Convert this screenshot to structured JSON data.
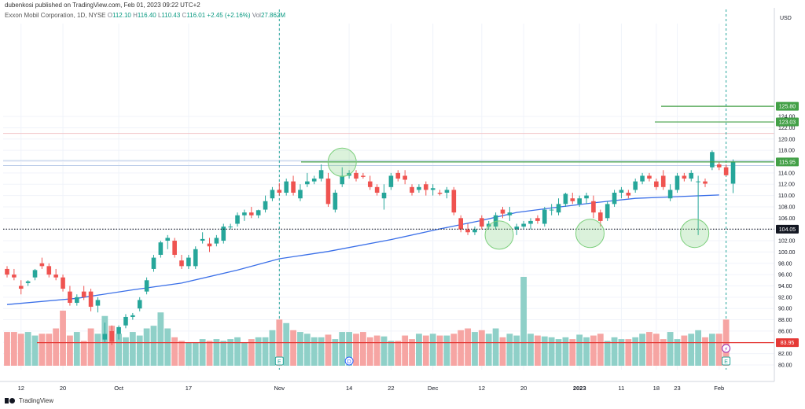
{
  "header": {
    "publisher": "dubenkosi published on TradingView.com, Feb 01, 2023 09:22 UTC+2",
    "symbol": "Exxon Mobil Corporation, 1D, NYSE",
    "o_label": "O",
    "o": "112.10",
    "h_label": "H",
    "h": "116.40",
    "l_label": "L",
    "l": "110.43",
    "c_label": "C",
    "c": "116.01",
    "change": "+2.45 (+2.16%)",
    "vol_label": "Vol",
    "vol": "27.862M"
  },
  "footer": {
    "brand": "TradingView"
  },
  "colors": {
    "up": "#26a69a",
    "down": "#ef5350",
    "ma": "#3a6fe8",
    "level": "#43a047",
    "volume_line": "#e53935",
    "circle": "#7ccf7c"
  },
  "chart_data": {
    "type": "candlestick",
    "currency_label": "USD",
    "ylim": [
      79.5,
      127
    ],
    "y_ticks": [
      "80.00",
      "82.00",
      "84.00",
      "86.00",
      "88.00",
      "90.00",
      "92.00",
      "94.00",
      "96.00",
      "98.00",
      "100.00",
      "102.00",
      "104.00",
      "106.00",
      "108.00",
      "110.00",
      "112.00",
      "114.00",
      "116.00",
      "118.00",
      "120.00",
      "122.00",
      "124.00"
    ],
    "x_ticks": [
      {
        "label": "12",
        "index": 2
      },
      {
        "label": "20",
        "index": 8
      },
      {
        "label": "Oct",
        "index": 16
      },
      {
        "label": "17",
        "index": 26
      },
      {
        "label": "Nov",
        "index": 39
      },
      {
        "label": "14",
        "index": 49
      },
      {
        "label": "22",
        "index": 55
      },
      {
        "label": "Dec",
        "index": 61
      },
      {
        "label": "12",
        "index": 68
      },
      {
        "label": "20",
        "index": 74
      },
      {
        "label": "2023",
        "index": 82
      },
      {
        "label": "11",
        "index": 88
      },
      {
        "label": "18",
        "index": 93
      },
      {
        "label": "23",
        "index": 96
      },
      {
        "label": "Feb",
        "index": 102
      }
    ],
    "candles": [
      [
        97,
        97.5,
        95.5,
        96
      ],
      [
        96,
        97,
        95,
        95.5
      ],
      [
        94,
        95,
        92.5,
        93.5
      ],
      [
        94.5,
        95,
        94,
        94.8
      ],
      [
        95.5,
        97,
        95,
        96.8
      ],
      [
        98,
        99,
        97,
        97.5
      ],
      [
        97.5,
        98,
        95.5,
        96
      ],
      [
        96,
        97,
        95,
        95.5
      ],
      [
        95.5,
        96,
        93,
        93.5
      ],
      [
        93,
        94,
        90.5,
        91
      ],
      [
        91,
        92.5,
        90.5,
        92
      ],
      [
        93,
        94,
        91.5,
        92
      ],
      [
        93,
        93.5,
        89.5,
        90.3
      ],
      [
        90.5,
        92,
        89.3,
        91.5
      ],
      [
        84.5,
        87.5,
        84,
        85.5
      ],
      [
        86,
        87,
        83.5,
        84.1
      ],
      [
        85.5,
        87,
        84.5,
        86.7
      ],
      [
        87,
        89,
        86.5,
        88.5
      ],
      [
        88.5,
        89.2,
        88,
        88.8
      ],
      [
        90,
        92,
        89.5,
        91.5
      ],
      [
        93,
        95.5,
        92.5,
        95
      ],
      [
        97,
        99.5,
        96.5,
        99
      ],
      [
        99.5,
        102,
        99,
        101.7
      ],
      [
        102,
        103,
        100.5,
        102.5
      ],
      [
        102,
        102.5,
        99,
        99.5
      ],
      [
        98.5,
        99.5,
        97,
        97.5
      ],
      [
        97.5,
        99.5,
        97,
        99
      ],
      [
        97.5,
        101,
        97,
        100.5
      ],
      [
        102,
        103.5,
        101.5,
        102.3
      ],
      [
        101.5,
        102.5,
        100,
        101
      ],
      [
        101.5,
        103,
        101,
        102.5
      ],
      [
        102,
        105,
        101.5,
        104.5
      ],
      [
        104.5,
        105,
        104,
        104.5
      ],
      [
        105,
        107,
        104.5,
        106.5
      ],
      [
        106.5,
        107.5,
        105.5,
        107
      ],
      [
        107,
        108,
        106,
        106.5
      ],
      [
        106.5,
        107.5,
        106,
        107.4
      ],
      [
        107.5,
        110,
        107,
        109
      ],
      [
        109.5,
        111.5,
        109,
        111
      ],
      [
        111,
        112.2,
        110,
        110.5
      ],
      [
        110.5,
        113,
        110,
        112.5
      ],
      [
        112.5,
        113.5,
        110,
        110.5
      ],
      [
        109.5,
        112,
        109,
        111
      ],
      [
        112,
        114,
        111.5,
        112.5
      ],
      [
        112.5,
        113.5,
        112,
        113
      ],
      [
        113,
        115.5,
        112.5,
        114.5
      ],
      [
        113,
        114,
        108,
        108.5
      ],
      [
        107.5,
        111,
        107,
        110.5
      ],
      [
        112,
        115,
        111.5,
        113.5
      ],
      [
        113.5,
        114.5,
        113,
        114
      ],
      [
        114,
        114.5,
        112.5,
        113
      ],
      [
        113.5,
        114,
        113,
        113.3
      ],
      [
        112.5,
        113.5,
        111,
        111.5
      ],
      [
        111.5,
        112,
        110,
        110.5
      ],
      [
        109.5,
        112,
        107.5,
        110.5
      ],
      [
        111.5,
        114,
        111,
        113.5
      ],
      [
        114,
        114.5,
        112.5,
        113
      ],
      [
        113.5,
        114.5,
        112,
        112.8
      ],
      [
        111.5,
        112,
        110,
        110.5
      ],
      [
        111,
        112,
        110.5,
        111.5
      ],
      [
        112,
        112.5,
        110,
        111
      ],
      [
        111,
        112,
        110,
        111.3
      ],
      [
        110.5,
        111,
        110,
        110.3
      ],
      [
        110.5,
        111.5,
        109.5,
        111
      ],
      [
        111,
        111.5,
        106.5,
        107
      ],
      [
        106,
        106.5,
        103.5,
        104
      ],
      [
        104,
        105,
        103,
        103.5
      ],
      [
        103.5,
        104.5,
        103,
        104
      ],
      [
        106,
        106.5,
        104,
        104.5
      ],
      [
        104.5,
        105.5,
        104,
        105
      ],
      [
        104.5,
        107,
        104,
        106.5
      ],
      [
        107.5,
        108,
        106,
        106.8
      ],
      [
        106.5,
        108,
        105.5,
        107
      ],
      [
        104,
        105,
        103,
        104.5
      ],
      [
        104.5,
        105.5,
        104,
        105
      ],
      [
        105,
        106,
        104,
        105.5
      ],
      [
        106,
        106.5,
        105,
        105.5
      ],
      [
        105,
        108,
        104.5,
        107.5
      ],
      [
        107.5,
        108.5,
        106.5,
        107.5
      ],
      [
        107,
        109.5,
        106.5,
        108.5
      ],
      [
        108.5,
        110.5,
        108,
        110.3
      ],
      [
        109.5,
        110.5,
        108.5,
        109
      ],
      [
        108.5,
        110,
        108,
        109.5
      ],
      [
        109.5,
        110.5,
        108.5,
        110
      ],
      [
        109,
        110,
        106,
        107
      ],
      [
        107,
        107.5,
        104.5,
        105.5
      ],
      [
        106,
        109,
        105.5,
        108.5
      ],
      [
        108.5,
        111,
        108,
        110.5
      ],
      [
        110.5,
        111.5,
        109.5,
        111
      ],
      [
        110.5,
        111,
        109.5,
        110
      ],
      [
        111,
        113,
        110.5,
        112.5
      ],
      [
        112.5,
        114,
        112,
        113.5
      ],
      [
        113.5,
        114,
        112.5,
        113
      ],
      [
        112.5,
        113,
        111,
        111.5
      ],
      [
        113.5,
        114.5,
        111,
        111.5
      ],
      [
        109.5,
        112,
        109,
        111
      ],
      [
        111,
        114,
        110.5,
        113.5
      ],
      [
        113.5,
        114,
        112.5,
        113
      ],
      [
        113,
        114.5,
        112.5,
        114
      ],
      [
        112.5,
        113.5,
        103,
        112.5
      ],
      [
        112.5,
        113,
        111.5,
        112.1
      ],
      [
        115,
        118,
        114.5,
        117.7
      ],
      [
        115.5,
        116,
        114.5,
        115
      ],
      [
        115,
        115.5,
        113.5,
        113.6
      ],
      [
        112.1,
        116.4,
        110.43,
        116.01
      ]
    ],
    "ma_points": [
      [
        0,
        90.7
      ],
      [
        10,
        91.8
      ],
      [
        18,
        93.3
      ],
      [
        25,
        94.5
      ],
      [
        33,
        96.8
      ],
      [
        39,
        98.8
      ],
      [
        46,
        100.1
      ],
      [
        55,
        102.2
      ],
      [
        62,
        104.1
      ],
      [
        68,
        105.6
      ],
      [
        73,
        107
      ],
      [
        78,
        107.8
      ],
      [
        84,
        108.7
      ],
      [
        90,
        109.5
      ],
      [
        96,
        109.8
      ],
      [
        102,
        110.1
      ]
    ],
    "volumes": [
      0.38,
      0.38,
      0.36,
      0.38,
      0.34,
      0.36,
      0.36,
      0.42,
      0.62,
      0.34,
      0.38,
      0.28,
      0.42,
      0.36,
      0.56,
      0.45,
      0.36,
      0.32,
      0.38,
      0.34,
      0.42,
      0.45,
      0.6,
      0.42,
      0.32,
      0.28,
      0.26,
      0.26,
      0.3,
      0.28,
      0.3,
      0.28,
      0.3,
      0.32,
      0.26,
      0.3,
      0.32,
      0.32,
      0.4,
      0.52,
      0.48,
      0.4,
      0.38,
      0.36,
      0.32,
      0.32,
      0.35,
      0.3,
      0.38,
      0.38,
      0.36,
      0.38,
      0.32,
      0.34,
      0.33,
      0.28,
      0.28,
      0.34,
      0.3,
      0.36,
      0.34,
      0.36,
      0.34,
      0.34,
      0.36,
      0.4,
      0.42,
      0.38,
      0.4,
      0.36,
      0.42,
      0.32,
      0.36,
      0.34,
      1.0,
      0.36,
      0.34,
      0.33,
      0.32,
      0.3,
      0.32,
      0.3,
      0.35,
      0.32,
      0.34,
      0.36,
      0.28,
      0.32,
      0.3,
      0.3,
      0.32,
      0.36,
      0.38,
      0.36,
      0.3,
      0.38,
      0.3,
      0.34,
      0.36,
      0.4,
      0.32,
      0.36,
      0.36,
      0.52
    ],
    "price_lines": [
      {
        "label": "125.80",
        "value": 125.8,
        "x_start": 841
      },
      {
        "label": "123.03",
        "value": 123.03,
        "x_start": 833
      },
      {
        "label": "115.95",
        "value": 115.95,
        "x_start": 383
      }
    ],
    "support_level": {
      "label": "104.05",
      "value": 104.05
    },
    "volume_level": {
      "label": "83.95",
      "value": 83.95
    },
    "band_lines": [
      121,
      116.2,
      115.3
    ],
    "circles": [
      {
        "index": 48,
        "value": 115.9
      },
      {
        "index": 70.5,
        "value": 103
      },
      {
        "index": 83.5,
        "value": 103.3
      },
      {
        "index": 98.5,
        "value": 103.3
      }
    ],
    "vertical_markers": [
      39,
      103
    ],
    "event_markers": [
      {
        "glyph": "E",
        "index": 39,
        "style": "square"
      },
      {
        "glyph": "D",
        "index": 49,
        "style": "circle"
      },
      {
        "glyph": "E",
        "index": 103,
        "style": "square"
      }
    ]
  }
}
